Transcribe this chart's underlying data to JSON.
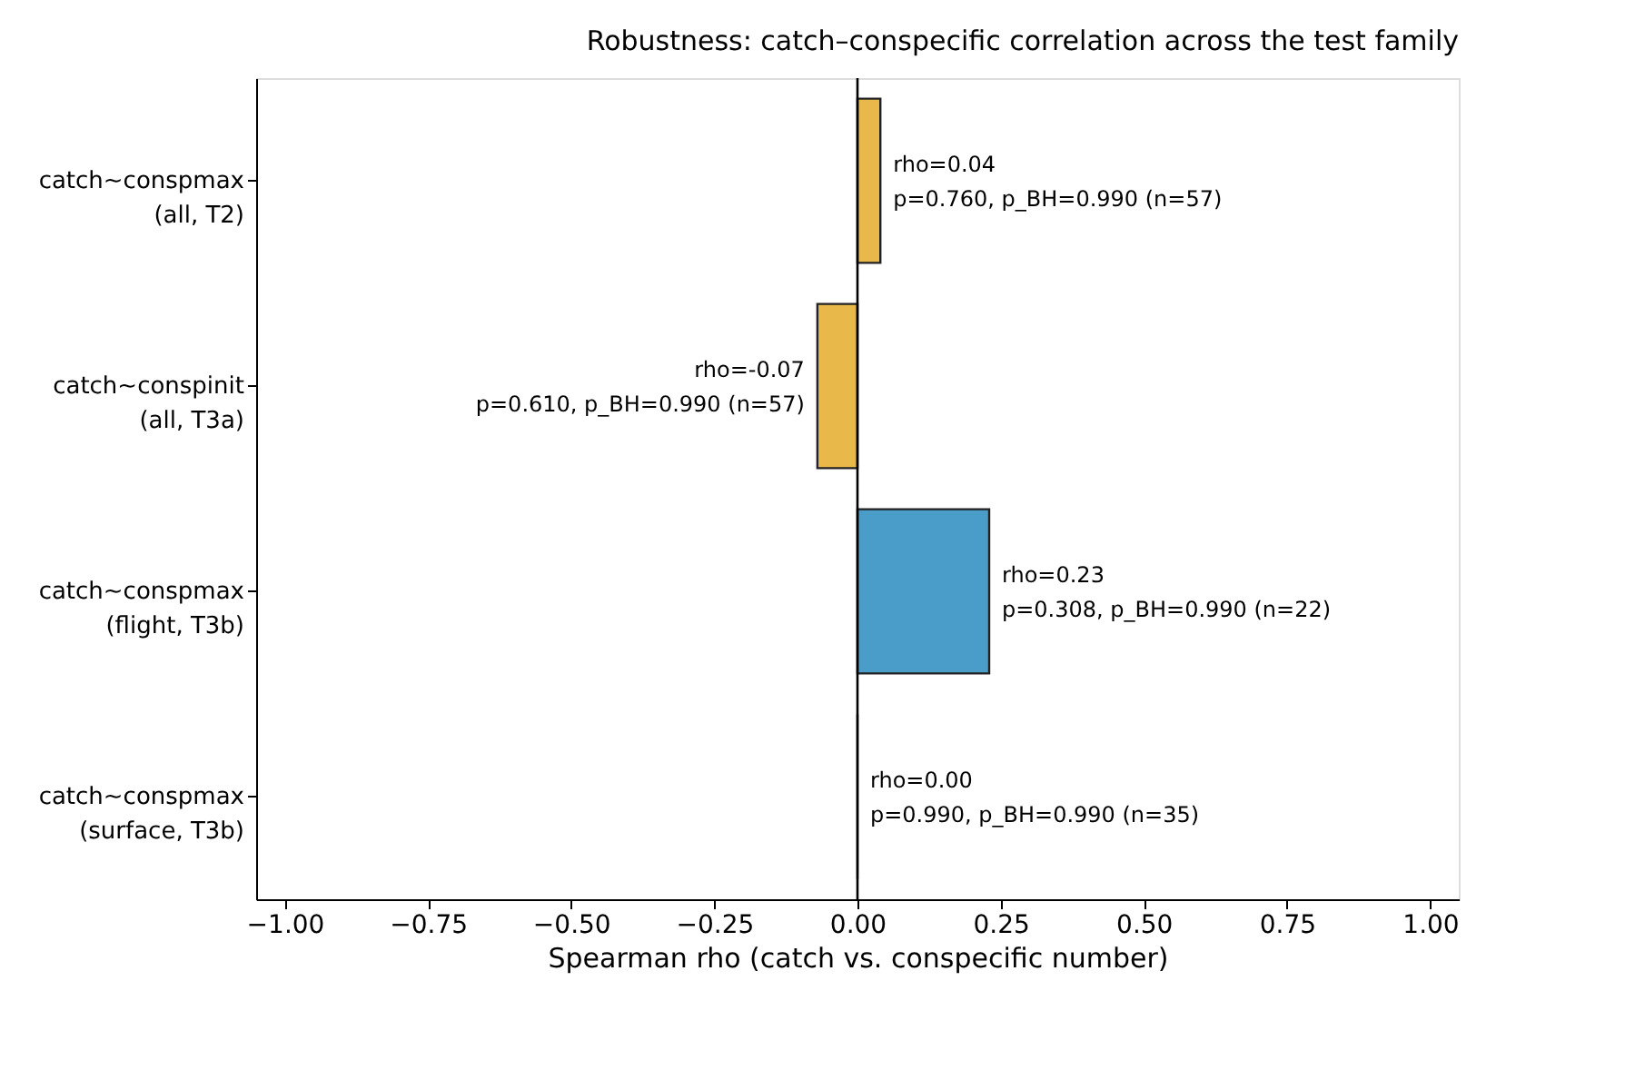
{
  "chart_data": {
    "type": "bar",
    "orientation": "horizontal",
    "title": "Robustness: catch–conspecific correlation across the test family",
    "xlabel": "Spearman rho (catch vs. conspecific number)",
    "categories": [
      "catch~conspmax\n(all, T2)",
      "catch~conspinit\n(all, T3a)",
      "catch~conspmax\n(flight, T3b)",
      "catch~conspmax\n(surface, T3b)"
    ],
    "values": [
      0.04,
      -0.07,
      0.23,
      0.0
    ],
    "colors": [
      "#e8b84a",
      "#e8b84a",
      "#4a9dc9",
      "#222222"
    ],
    "value_labels": [
      "rho=0.04\np=0.760, p_BH=0.990 (n=57)",
      "rho=-0.07\np=0.610, p_BH=0.990 (n=57)",
      "rho=0.23\np=0.308, p_BH=0.990 (n=22)",
      "rho=0.00\np=0.990, p_BH=0.990 (n=35)"
    ],
    "xlim": [
      -1.05,
      1.05
    ],
    "xticks": [
      {
        "value": -1,
        "label": "−1.00"
      },
      {
        "value": -0.75,
        "label": "−0.75"
      },
      {
        "value": -0.5,
        "label": "−0.50"
      },
      {
        "value": -0.25,
        "label": "−0.25"
      },
      {
        "value": 0,
        "label": "0.00"
      },
      {
        "value": 0.25,
        "label": "0.25"
      },
      {
        "value": 0.5,
        "label": "0.50"
      },
      {
        "value": 0.75,
        "label": "0.75"
      },
      {
        "value": 1,
        "label": "1.00"
      }
    ],
    "ref_lines": [
      {
        "axis": "x",
        "value": 0,
        "label": null,
        "color": "#000000"
      }
    ],
    "grid": false
  }
}
